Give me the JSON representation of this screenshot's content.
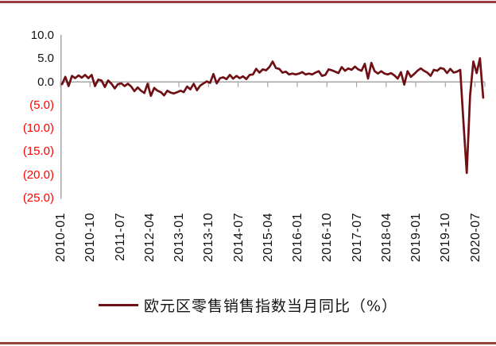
{
  "chart_data": {
    "type": "line",
    "title": "",
    "legend": "欧元区零售销售指数当月同比（%）",
    "x_start": "2010-01",
    "x_interval": "1 month",
    "x_tick_labels": [
      "2010-01",
      "2010-10",
      "2011-07",
      "2012-04",
      "2013-01",
      "2013-10",
      "2014-07",
      "2015-04",
      "2016-01",
      "2016-10",
      "2017-07",
      "2018-04",
      "2019-01",
      "2019-10",
      "2020-07"
    ],
    "y_tick_labels": [
      "10.0",
      "5.0",
      "0.0",
      "(5.0)",
      "(10.0)",
      "(15.0)",
      "(20.0)",
      "(25.0)"
    ],
    "y_tick_values": [
      10,
      5,
      0,
      -5,
      -10,
      -15,
      -20,
      -25
    ],
    "ylim": [
      -25,
      10
    ],
    "grid": "zero-line-only",
    "legend_position": "bottom-center",
    "values": [
      -0.5,
      1.1,
      -0.9,
      1.3,
      0.8,
      1.4,
      0.9,
      1.5,
      0.8,
      1.5,
      -0.9,
      0.5,
      0.3,
      -1.1,
      0.3,
      -0.4,
      -1.4,
      -0.5,
      -0.3,
      -0.9,
      -0.4,
      -1.0,
      -2.0,
      -1.2,
      -1.9,
      -2.4,
      -0.4,
      -3.0,
      -1.3,
      -1.9,
      -2.2,
      -2.9,
      -1.9,
      -2.3,
      -2.5,
      -2.2,
      -1.9,
      -2.2,
      -1.0,
      -1.6,
      -0.4,
      -1.8,
      -0.8,
      -0.3,
      0.1,
      -0.2,
      1.7,
      -0.3,
      0.8,
      1.0,
      0.6,
      1.5,
      0.7,
      1.3,
      0.8,
      1.2,
      0.6,
      1.5,
      1.6,
      2.8,
      2.0,
      2.7,
      2.5,
      3.2,
      4.4,
      3.0,
      2.8,
      2.0,
      2.2,
      1.6,
      1.8,
      1.6,
      1.8,
      2.1,
      1.6,
      1.8,
      1.6,
      2.0,
      2.3,
      1.3,
      1.5,
      2.7,
      2.5,
      2.2,
      1.9,
      3.2,
      2.4,
      2.9,
      2.6,
      3.3,
      2.7,
      2.4,
      3.9,
      0.7,
      4.1,
      2.3,
      1.8,
      2.3,
      1.8,
      1.6,
      1.9,
      1.4,
      0.7,
      2.1,
      -0.6,
      2.3,
      1.1,
      1.7,
      2.4,
      2.9,
      2.4,
      2.0,
      1.3,
      2.6,
      2.4,
      3.0,
      2.8,
      1.9,
      2.8,
      2.0,
      2.2,
      2.6,
      -8.8,
      -19.6,
      -2.9,
      4.4,
      1.9,
      5.1,
      -3.4
    ],
    "series_color": "#6E1014",
    "negative_label_color": "#ff0000",
    "axis_color": "#A6A6A6",
    "top_rule_color": "#9B3A40",
    "bottom_rule_color": "#95423A"
  }
}
